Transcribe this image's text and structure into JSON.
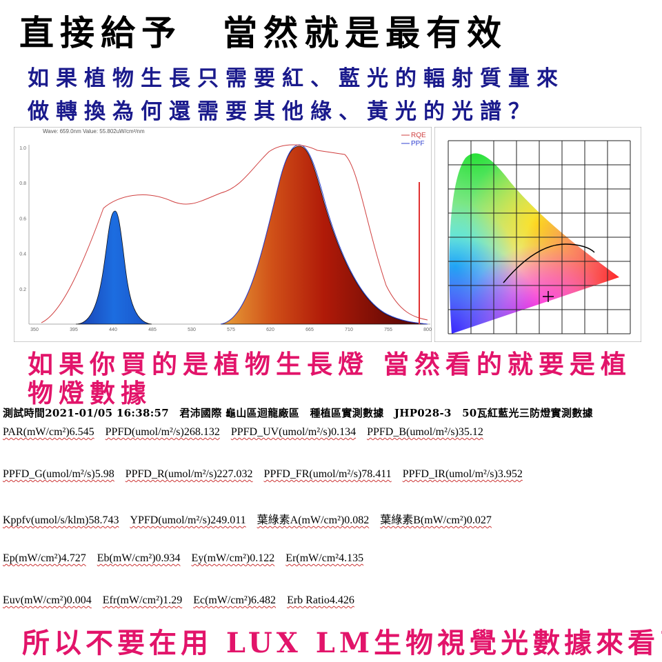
{
  "header": {
    "title": "直接給予　當然就是最有效",
    "question": [
      "如果植物生長只需要紅、藍光的輻射質量來",
      "做轉換為何還需要其他綠、黃光的光譜？"
    ]
  },
  "spectrum": {
    "caption": "Wave: 659.0nm Value: 55.802uW/cm²/nm",
    "legend": [
      "RQE",
      "PPF"
    ],
    "xticks": [
      "350",
      "395",
      "440",
      "485",
      "530",
      "575",
      "620",
      "665",
      "710",
      "755",
      "800"
    ],
    "yticks": [
      "0.2",
      "0.4",
      "0.6",
      "0.8",
      "1.0"
    ]
  },
  "statement": [
    "如果你買的是植物生長燈 當然看的就要是植",
    "物燈數據"
  ],
  "report": {
    "heading": "測試時間2021-01/05 16:38:57　君沛國際 龜山區迴龍廠區　種植區實測數據　JHP028-3　50瓦紅藍光三防燈實測數據",
    "rows": [
      [
        "PAR(mW/cm²)6.545",
        "PPFD(umol/m²/s)268.132",
        "PPFD_UV(umol/m²/s)0.134",
        "PPFD_B(umol/m²/s)35.12"
      ],
      [
        "PPFD_G(umol/m²/s)5.98",
        "PPFD_R(umol/m²/s)227.032",
        "PPFD_FR(umol/m²/s)78.411",
        "PPFD_IR(umol/m²/s)3.952"
      ],
      [
        "Kppfv(umol/s/klm)58.743",
        "YPFD(umol/m²/s)249.011",
        "葉綠素A(mW/cm²)0.082",
        "葉綠素B(mW/cm²)0.027"
      ],
      [
        "Ep(mW/cm²)4.727",
        "Eb(mW/cm²)0.934",
        "Ey(mW/cm²)0.122",
        "Er(mW/cm²4.135"
      ],
      [
        "Euv(mW/cm²)0.004",
        "Efr(mW/cm²)1.29",
        "Ec(mW/cm²)6.482",
        "Erb Ratio4.426"
      ]
    ]
  },
  "footer": "所以不要在用 LUX LM生物視覺光數據來看了"
}
